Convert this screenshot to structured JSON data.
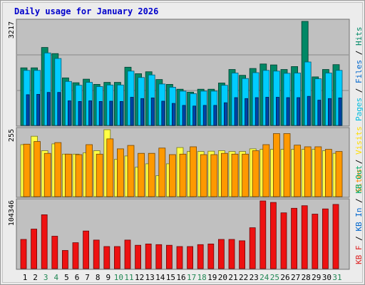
{
  "chart_data": {
    "type": "bar",
    "title": "Daily usage for January 2026",
    "categories": [
      "1",
      "2",
      "3",
      "4",
      "5",
      "6",
      "7",
      "8",
      "9",
      "10",
      "11",
      "12",
      "13",
      "14",
      "15",
      "16",
      "17",
      "18",
      "19",
      "20",
      "21",
      "22",
      "23",
      "24",
      "25",
      "26",
      "27",
      "28",
      "29",
      "30",
      "31"
    ],
    "weekend_days": [
      "3",
      "4",
      "10",
      "11",
      "17",
      "18",
      "24",
      "25",
      "31"
    ],
    "panels": [
      {
        "id": "hits_files_pages",
        "ymax_label": "3217",
        "ylim": [
          0,
          3217
        ],
        "label_parts": [
          {
            "text": "Pages",
            "color": "#00bbdd"
          },
          {
            "text": " / ",
            "color": "#000000"
          },
          {
            "text": "Files",
            "color": "#0066cc"
          },
          {
            "text": " / ",
            "color": "#000000"
          },
          {
            "text": "Hits",
            "color": "#008866"
          }
        ],
        "series": [
          {
            "name": "Hits",
            "color": "#008866",
            "values": [
              1780,
              1780,
              2410,
              2220,
              1470,
              1320,
              1430,
              1270,
              1330,
              1330,
              1800,
              1600,
              1660,
              1420,
              1270,
              1120,
              1030,
              1120,
              1120,
              1310,
              1730,
              1550,
              1760,
              1900,
              1870,
              1730,
              1820,
              3217,
              1500,
              1730,
              1880
            ]
          },
          {
            "name": "Files",
            "color": "#00ccff",
            "values": [
              1700,
              1700,
              2240,
              2070,
              1360,
              1240,
              1330,
              1200,
              1250,
              1250,
              1680,
              1480,
              1560,
              1280,
              1180,
              1060,
              980,
              1060,
              1060,
              1240,
              1620,
              1450,
              1630,
              1700,
              1680,
              1610,
              1620,
              1960,
              1440,
              1620,
              1700
            ]
          },
          {
            "name": "Pages",
            "color": "#0044aa",
            "values": [
              950,
              960,
              1020,
              1020,
              760,
              740,
              760,
              740,
              750,
              740,
              870,
              830,
              850,
              750,
              680,
              620,
              600,
              620,
              620,
              700,
              860,
              830,
              860,
              870,
              870,
              860,
              860,
              900,
              780,
              830,
              850
            ]
          }
        ]
      },
      {
        "id": "visits_sites",
        "ymax_label": "255",
        "ylim": [
          0,
          255
        ],
        "label_parts": [
          {
            "text": "Sites",
            "color": "#ff8800"
          },
          {
            "text": " / ",
            "color": "#000000"
          },
          {
            "text": "Visits",
            "color": "#ffdd00"
          }
        ],
        "series": [
          {
            "name": "Visits",
            "color": "#ffff44",
            "values": [
              198,
              230,
              175,
              201,
              162,
              162,
              167,
              175,
              255,
              142,
              155,
              112,
              125,
              80,
              125,
              187,
              172,
              172,
              173,
              175,
              172,
              172,
              182,
              180,
              180,
              180,
              180,
              180,
              180,
              175,
              165
            ]
          },
          {
            "name": "Sites",
            "color": "#ff9900",
            "values": [
              200,
              210,
              165,
              206,
              162,
              160,
              198,
              162,
              220,
              182,
              195,
              165,
              165,
              185,
              160,
              162,
              190,
              160,
              160,
              165,
              162,
              162,
              175,
              198,
              240,
              240,
              196,
              190,
              190,
              180,
              172
            ]
          }
        ]
      },
      {
        "id": "kb_in_out",
        "ymax_label": "104346",
        "ylim": [
          0,
          104346
        ],
        "label_parts": [
          {
            "text": "KB F",
            "color": "#dd2222"
          },
          {
            "text": " / ",
            "color": "#000000"
          },
          {
            "text": "KB In",
            "color": "#0066cc"
          },
          {
            "text": " / ",
            "color": "#000000"
          },
          {
            "text": "KB Out",
            "color": "#00aa66"
          }
        ],
        "series": [
          {
            "name": "KB F",
            "color": "#ee1111",
            "values": [
              45000,
              61000,
              83000,
              50000,
              28000,
              40000,
              58000,
              44000,
              34000,
              34000,
              44000,
              36000,
              38000,
              37000,
              36000,
              34000,
              34000,
              37000,
              38000,
              45000,
              45000,
              43000,
              63000,
              104346,
              102000,
              86000,
              93000,
              97000,
              84000,
              92000,
              99000
            ]
          }
        ]
      }
    ]
  }
}
